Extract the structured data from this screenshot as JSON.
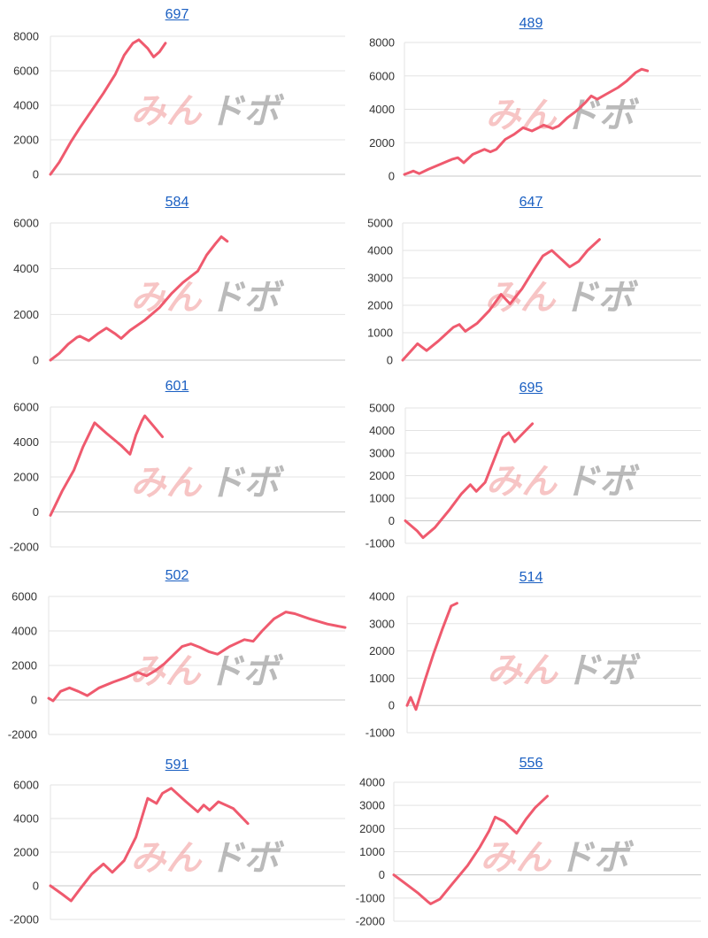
{
  "watermark": {
    "part_a": "みん",
    "part_b": "ドボ"
  },
  "line_color": "#ef5a6e",
  "chart_data": [
    {
      "type": "line",
      "title": "697",
      "ylim": [
        0,
        8000
      ],
      "yticks": [
        "8000",
        "6000",
        "4000",
        "2000",
        "0"
      ],
      "points": [
        [
          0,
          0
        ],
        [
          0.03,
          700
        ],
        [
          0.07,
          1900
        ],
        [
          0.1,
          2700
        ],
        [
          0.14,
          3700
        ],
        [
          0.18,
          4700
        ],
        [
          0.22,
          5800
        ],
        [
          0.25,
          6900
        ],
        [
          0.28,
          7600
        ],
        [
          0.3,
          7800
        ],
        [
          0.33,
          7300
        ],
        [
          0.35,
          6800
        ],
        [
          0.37,
          7100
        ],
        [
          0.39,
          7600
        ]
      ]
    },
    {
      "type": "line",
      "title": "489",
      "ylim": [
        0,
        8000
      ],
      "yticks": [
        "8000",
        "6000",
        "4000",
        "2000",
        "0"
      ],
      "points": [
        [
          0,
          100
        ],
        [
          0.03,
          300
        ],
        [
          0.05,
          150
        ],
        [
          0.08,
          400
        ],
        [
          0.12,
          700
        ],
        [
          0.16,
          1000
        ],
        [
          0.18,
          1100
        ],
        [
          0.2,
          800
        ],
        [
          0.23,
          1300
        ],
        [
          0.27,
          1600
        ],
        [
          0.29,
          1450
        ],
        [
          0.31,
          1600
        ],
        [
          0.34,
          2200
        ],
        [
          0.37,
          2500
        ],
        [
          0.4,
          2900
        ],
        [
          0.43,
          2700
        ],
        [
          0.47,
          3050
        ],
        [
          0.5,
          2850
        ],
        [
          0.52,
          3000
        ],
        [
          0.55,
          3500
        ],
        [
          0.58,
          3900
        ],
        [
          0.61,
          4400
        ],
        [
          0.63,
          4800
        ],
        [
          0.65,
          4600
        ],
        [
          0.68,
          4900
        ],
        [
          0.72,
          5300
        ],
        [
          0.75,
          5700
        ],
        [
          0.78,
          6200
        ],
        [
          0.8,
          6400
        ],
        [
          0.82,
          6300
        ]
      ]
    },
    {
      "type": "line",
      "title": "584",
      "ylim": [
        0,
        6000
      ],
      "yticks": [
        "6000",
        "4000",
        "2000",
        "0"
      ],
      "points": [
        [
          0,
          0
        ],
        [
          0.03,
          300
        ],
        [
          0.06,
          700
        ],
        [
          0.09,
          1000
        ],
        [
          0.1,
          1050
        ],
        [
          0.13,
          850
        ],
        [
          0.16,
          1150
        ],
        [
          0.19,
          1400
        ],
        [
          0.22,
          1150
        ],
        [
          0.24,
          950
        ],
        [
          0.27,
          1300
        ],
        [
          0.32,
          1750
        ],
        [
          0.37,
          2300
        ],
        [
          0.41,
          2900
        ],
        [
          0.45,
          3400
        ],
        [
          0.5,
          3900
        ],
        [
          0.53,
          4600
        ],
        [
          0.56,
          5100
        ],
        [
          0.58,
          5400
        ],
        [
          0.6,
          5200
        ]
      ]
    },
    {
      "type": "line",
      "title": "647",
      "ylim": [
        0,
        5000
      ],
      "yticks": [
        "5000",
        "4000",
        "3000",
        "2000",
        "1000",
        "0"
      ],
      "points": [
        [
          0,
          0
        ],
        [
          0.05,
          600
        ],
        [
          0.08,
          350
        ],
        [
          0.12,
          700
        ],
        [
          0.17,
          1200
        ],
        [
          0.19,
          1300
        ],
        [
          0.21,
          1050
        ],
        [
          0.25,
          1350
        ],
        [
          0.29,
          1800
        ],
        [
          0.33,
          2400
        ],
        [
          0.36,
          2050
        ],
        [
          0.4,
          2600
        ],
        [
          0.44,
          3300
        ],
        [
          0.47,
          3800
        ],
        [
          0.5,
          4000
        ],
        [
          0.53,
          3700
        ],
        [
          0.56,
          3400
        ],
        [
          0.59,
          3600
        ],
        [
          0.62,
          4000
        ],
        [
          0.66,
          4400
        ]
      ]
    },
    {
      "type": "line",
      "title": "601",
      "ylim": [
        -2000,
        6000
      ],
      "yticks": [
        "6000",
        "4000",
        "2000",
        "0",
        "-2000"
      ],
      "points": [
        [
          0,
          -200
        ],
        [
          0.04,
          1200
        ],
        [
          0.08,
          2400
        ],
        [
          0.11,
          3700
        ],
        [
          0.15,
          5100
        ],
        [
          0.19,
          4500
        ],
        [
          0.24,
          3800
        ],
        [
          0.27,
          3300
        ],
        [
          0.29,
          4400
        ],
        [
          0.31,
          5200
        ],
        [
          0.32,
          5500
        ],
        [
          0.35,
          4900
        ],
        [
          0.38,
          4300
        ]
      ]
    },
    {
      "type": "line",
      "title": "695",
      "ylim": [
        -1000,
        5000
      ],
      "yticks": [
        "5000",
        "4000",
        "3000",
        "2000",
        "1000",
        "0",
        "-1000"
      ],
      "points": [
        [
          0,
          0
        ],
        [
          0.04,
          -450
        ],
        [
          0.06,
          -750
        ],
        [
          0.1,
          -300
        ],
        [
          0.15,
          500
        ],
        [
          0.19,
          1200
        ],
        [
          0.22,
          1600
        ],
        [
          0.24,
          1300
        ],
        [
          0.27,
          1700
        ],
        [
          0.3,
          2700
        ],
        [
          0.33,
          3700
        ],
        [
          0.35,
          3900
        ],
        [
          0.37,
          3500
        ],
        [
          0.4,
          3900
        ],
        [
          0.43,
          4300
        ]
      ]
    },
    {
      "type": "line",
      "title": "502",
      "ylim": [
        -2000,
        6000
      ],
      "yticks": [
        "6000",
        "4000",
        "2000",
        "0",
        "-2000"
      ],
      "points": [
        [
          0,
          100
        ],
        [
          0.015,
          -50
        ],
        [
          0.04,
          500
        ],
        [
          0.07,
          700
        ],
        [
          0.1,
          500
        ],
        [
          0.13,
          250
        ],
        [
          0.17,
          700
        ],
        [
          0.22,
          1050
        ],
        [
          0.26,
          1300
        ],
        [
          0.3,
          1600
        ],
        [
          0.33,
          1400
        ],
        [
          0.36,
          1700
        ],
        [
          0.39,
          2100
        ],
        [
          0.42,
          2600
        ],
        [
          0.45,
          3100
        ],
        [
          0.48,
          3250
        ],
        [
          0.51,
          3050
        ],
        [
          0.54,
          2800
        ],
        [
          0.57,
          2650
        ],
        [
          0.61,
          3100
        ],
        [
          0.66,
          3500
        ],
        [
          0.69,
          3400
        ],
        [
          0.72,
          4000
        ],
        [
          0.76,
          4700
        ],
        [
          0.8,
          5100
        ],
        [
          0.83,
          5000
        ],
        [
          0.88,
          4700
        ],
        [
          0.94,
          4400
        ],
        [
          1.0,
          4200
        ]
      ]
    },
    {
      "type": "line",
      "title": "514",
      "ylim": [
        -1000,
        4000
      ],
      "yticks": [
        "4000",
        "3000",
        "2000",
        "1000",
        "0",
        "-1000"
      ],
      "points": [
        [
          0,
          0
        ],
        [
          0.012,
          300
        ],
        [
          0.03,
          -150
        ],
        [
          0.06,
          900
        ],
        [
          0.09,
          1900
        ],
        [
          0.12,
          2800
        ],
        [
          0.15,
          3650
        ],
        [
          0.17,
          3750
        ]
      ]
    },
    {
      "type": "line",
      "title": "591",
      "ylim": [
        -2000,
        6000
      ],
      "yticks": [
        "6000",
        "4000",
        "2000",
        "0",
        "-2000"
      ],
      "points": [
        [
          0,
          0
        ],
        [
          0.04,
          -500
        ],
        [
          0.07,
          -900
        ],
        [
          0.1,
          -200
        ],
        [
          0.14,
          700
        ],
        [
          0.18,
          1300
        ],
        [
          0.21,
          800
        ],
        [
          0.25,
          1500
        ],
        [
          0.29,
          2900
        ],
        [
          0.33,
          5200
        ],
        [
          0.36,
          4900
        ],
        [
          0.38,
          5500
        ],
        [
          0.41,
          5800
        ],
        [
          0.46,
          5000
        ],
        [
          0.5,
          4400
        ],
        [
          0.52,
          4800
        ],
        [
          0.54,
          4500
        ],
        [
          0.57,
          5000
        ],
        [
          0.62,
          4600
        ],
        [
          0.67,
          3700
        ]
      ]
    },
    {
      "type": "line",
      "title": "556",
      "ylim": [
        -2000,
        4000
      ],
      "yticks": [
        "4000",
        "3000",
        "2000",
        "1000",
        "0",
        "-1000",
        "-2000"
      ],
      "points": [
        [
          0,
          0
        ],
        [
          0.04,
          -400
        ],
        [
          0.08,
          -800
        ],
        [
          0.11,
          -1150
        ],
        [
          0.12,
          -1250
        ],
        [
          0.15,
          -1050
        ],
        [
          0.19,
          -400
        ],
        [
          0.24,
          400
        ],
        [
          0.28,
          1200
        ],
        [
          0.31,
          1900
        ],
        [
          0.33,
          2500
        ],
        [
          0.36,
          2300
        ],
        [
          0.4,
          1800
        ],
        [
          0.43,
          2400
        ],
        [
          0.46,
          2900
        ],
        [
          0.5,
          3400
        ]
      ]
    }
  ]
}
